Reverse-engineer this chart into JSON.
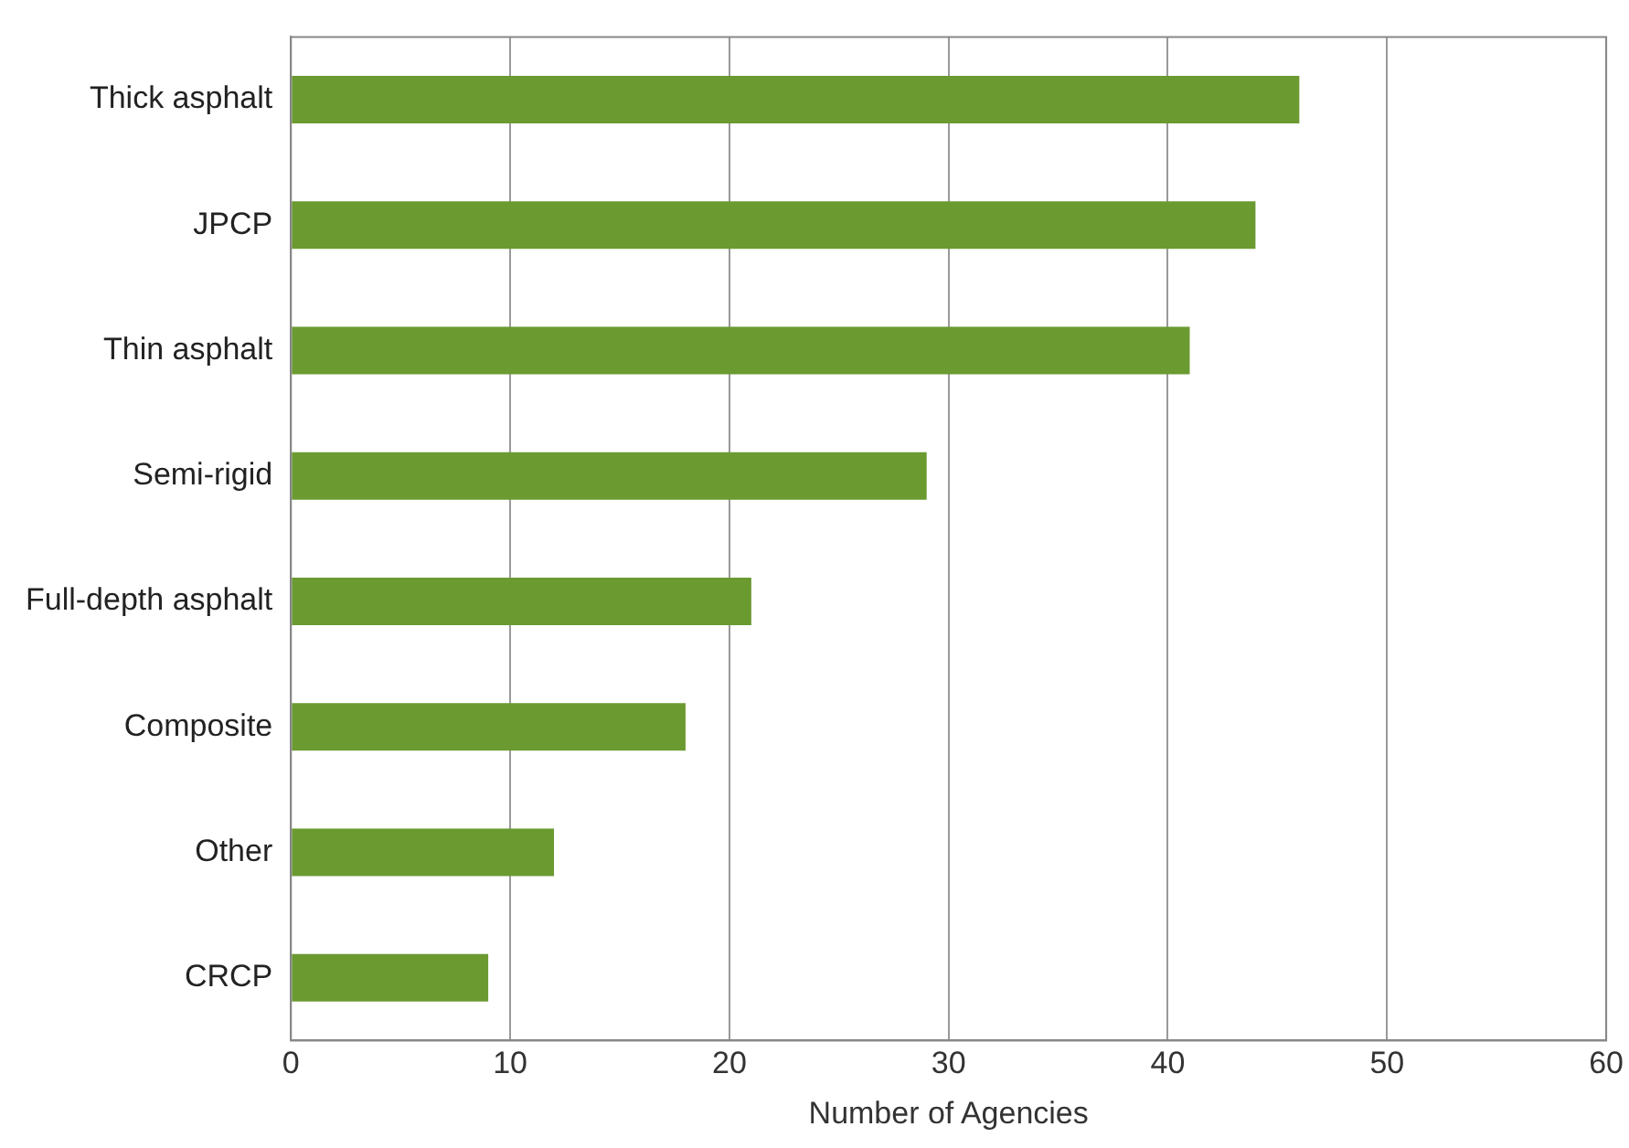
{
  "chart_data": {
    "type": "bar",
    "orientation": "horizontal",
    "xlabel": "Number of Agencies",
    "categories": [
      "Thick asphalt",
      "JPCP",
      "Thin asphalt",
      "Semi-rigid",
      "Full-depth asphalt",
      "Composite",
      "Other",
      "CRCP"
    ],
    "values": [
      46,
      44,
      41,
      29,
      21,
      18,
      12,
      9
    ],
    "color": "#6b9a31",
    "xlim": [
      0,
      60
    ],
    "xticks": [
      0,
      10,
      20,
      30,
      40,
      50,
      60
    ],
    "grid": "x",
    "legend": false
  }
}
